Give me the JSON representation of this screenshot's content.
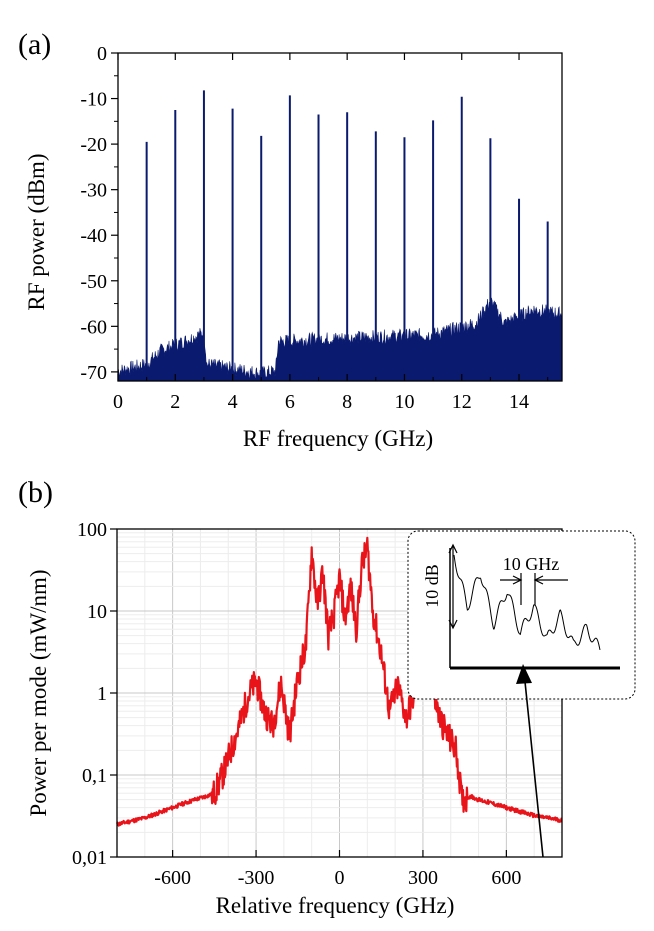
{
  "chart_data": [
    {
      "type": "bar",
      "panel_label": "(a)",
      "xlabel": "RF frequency (GHz)",
      "ylabel": "RF power (dBm)",
      "xlim": [
        0,
        15.5
      ],
      "ylim": [
        -72,
        0
      ],
      "xticks": [
        "0",
        "2",
        "4",
        "6",
        "8",
        "10",
        "12",
        "14"
      ],
      "yticks": [
        "0",
        "-10",
        "-20",
        "-30",
        "-40",
        "-50",
        "-60",
        "-70"
      ],
      "color": "#0a1a6e",
      "x": [
        1,
        2,
        3,
        4,
        5,
        6,
        7,
        8,
        9,
        10,
        11,
        12,
        13,
        14,
        15
      ],
      "values": [
        -19.5,
        -12.5,
        -8.2,
        -12.2,
        -18.2,
        -9.3,
        -13.5,
        -13,
        -17.2,
        -18.5,
        -14.8,
        -9.6,
        -18.7,
        -32,
        -37
      ],
      "noise_floor": [
        [
          0,
          -70.5
        ],
        [
          1,
          -69
        ],
        [
          1.5,
          -66
        ],
        [
          2.5,
          -63.5
        ],
        [
          3,
          -62
        ],
        [
          3.1,
          -69
        ],
        [
          4,
          -70
        ],
        [
          5,
          -71
        ],
        [
          5.5,
          -70.5
        ],
        [
          5.6,
          -64
        ],
        [
          7,
          -63.5
        ],
        [
          9,
          -63
        ],
        [
          11,
          -62.5
        ],
        [
          12.5,
          -60
        ],
        [
          13,
          -55
        ],
        [
          13.5,
          -60
        ],
        [
          14.5,
          -57
        ],
        [
          15.5,
          -58
        ]
      ]
    },
    {
      "type": "line",
      "panel_label": "(b)",
      "xlabel": "Relative frequency (GHz)",
      "ylabel": "Power per mode (mW/nm)",
      "xlim": [
        -800,
        800
      ],
      "ylim": [
        0.01,
        100
      ],
      "yscale": "log",
      "grid": true,
      "xticks": [
        "-600",
        "-300",
        "0",
        "300",
        "600"
      ],
      "yticks": [
        "100",
        "10",
        "1",
        "0,1",
        "0,01"
      ],
      "color": "#e8141a",
      "x": [
        -800,
        -700,
        -600,
        -560,
        -520,
        -480,
        -450,
        -420,
        -390,
        -360,
        -330,
        -300,
        -270,
        -240,
        -210,
        -180,
        -150,
        -120,
        -100,
        -80,
        -60,
        -40,
        -20,
        0,
        20,
        40,
        60,
        80,
        100,
        120,
        150,
        180,
        210,
        240,
        270,
        300,
        330,
        360,
        390,
        420,
        440,
        470,
        500,
        550,
        600,
        700,
        800
      ],
      "values": [
        0.025,
        0.03,
        0.04,
        0.045,
        0.05,
        0.055,
        0.06,
        0.1,
        0.2,
        0.4,
        0.9,
        1.4,
        0.6,
        0.4,
        1.3,
        0.3,
        1.5,
        4,
        55,
        12,
        30,
        5,
        9,
        25,
        8,
        20,
        6,
        35,
        60,
        10,
        3,
        0.6,
        1.2,
        0.5,
        1.0,
        2.0,
        1.2,
        0.5,
        0.3,
        0.2,
        0.05,
        0.055,
        0.05,
        0.045,
        0.04,
        0.032,
        0.028
      ],
      "inset": {
        "type": "line",
        "annotations": [
          "10 dB",
          "10 GHz"
        ],
        "values": [
          12,
          6,
          10,
          4,
          8,
          3,
          6,
          2.2,
          5,
          1.5,
          3.5,
          1
        ]
      }
    }
  ]
}
